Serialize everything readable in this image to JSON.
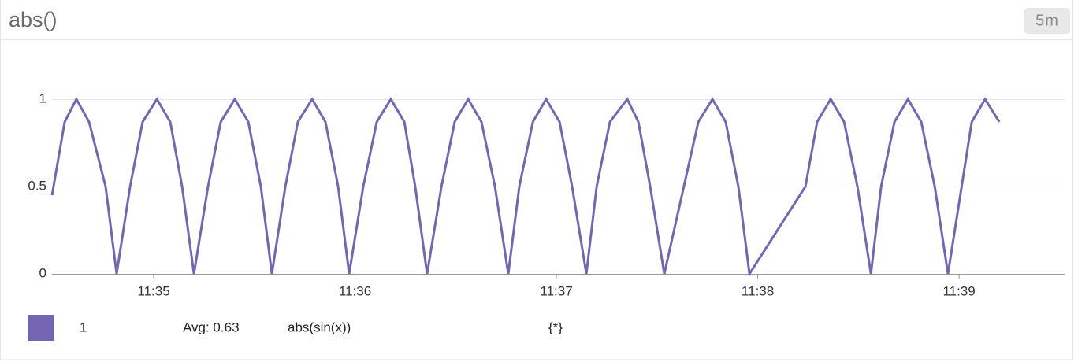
{
  "header": {
    "title": "abs()",
    "badge": "5m"
  },
  "chart_data": {
    "type": "line",
    "x": [
      34.495,
      34.558,
      34.616,
      34.679,
      34.761,
      34.816,
      34.883,
      34.945,
      35.016,
      35.082,
      35.141,
      35.2,
      35.27,
      35.333,
      35.403,
      35.47,
      35.532,
      35.587,
      35.654,
      35.716,
      35.787,
      35.853,
      35.916,
      35.971,
      36.041,
      36.108,
      36.178,
      36.245,
      36.299,
      36.358,
      36.429,
      36.495,
      36.562,
      36.628,
      36.695,
      36.761,
      36.816,
      36.883,
      36.949,
      37.016,
      37.078,
      37.149,
      37.2,
      37.266,
      37.352,
      37.407,
      37.466,
      37.536,
      37.705,
      37.775,
      37.841,
      37.904,
      37.959,
      38.237,
      38.295,
      38.362,
      38.429,
      38.495,
      38.562,
      38.613,
      38.679,
      38.746,
      38.812,
      38.879,
      38.945,
      39.063,
      39.129,
      39.2
    ],
    "series": [
      {
        "name": "1",
        "color": "#7466b4",
        "values": [
          0.45,
          0.87,
          1,
          0.87,
          0.5,
          0,
          0.5,
          0.87,
          1,
          0.87,
          0.5,
          0,
          0.5,
          0.87,
          1,
          0.87,
          0.5,
          0,
          0.5,
          0.87,
          1,
          0.87,
          0.5,
          0,
          0.5,
          0.87,
          1,
          0.87,
          0.5,
          0,
          0.5,
          0.87,
          1,
          0.87,
          0.5,
          0,
          0.5,
          0.87,
          1,
          0.87,
          0.5,
          0,
          0.5,
          0.87,
          1,
          0.87,
          0.5,
          0,
          0.87,
          1,
          0.87,
          0.5,
          0,
          0.5,
          0.87,
          1,
          0.87,
          0.5,
          0,
          0.5,
          0.87,
          1,
          0.87,
          0.5,
          0,
          0.87,
          1,
          0.87
        ]
      }
    ],
    "xlim": [
      34.495,
      39.528
    ],
    "xticks": [
      {
        "value": 35,
        "label": "11:35"
      },
      {
        "value": 36,
        "label": "11:36"
      },
      {
        "value": 37,
        "label": "11:37"
      },
      {
        "value": 38,
        "label": "11:38"
      },
      {
        "value": 39,
        "label": "11:39"
      }
    ],
    "ylim": [
      0,
      1.1
    ],
    "yticks": [
      0,
      0.5,
      1
    ],
    "grid": true
  },
  "legend": {
    "avg": "Avg: 0.63",
    "query": "abs(sin(x))",
    "scope": "{*}"
  }
}
